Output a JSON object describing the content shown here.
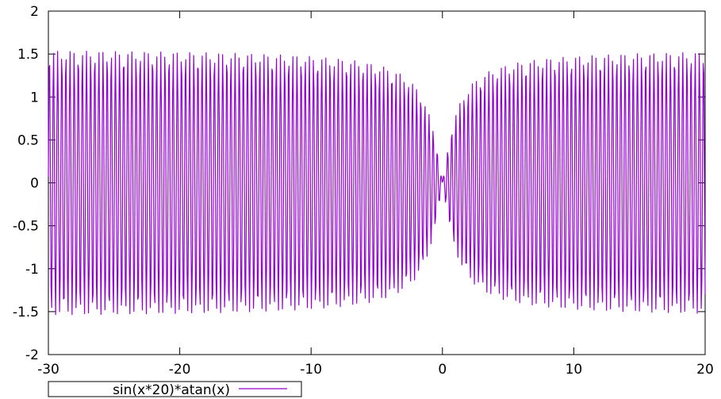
{
  "chart_data": {
    "type": "line",
    "title": "",
    "xlabel": "",
    "ylabel": "",
    "xlim": [
      -30,
      20
    ],
    "ylim": [
      -2,
      2
    ],
    "x_ticks": [
      -30,
      -20,
      -10,
      0,
      10,
      20
    ],
    "y_ticks": [
      -2,
      -1.5,
      -1,
      -0.5,
      0,
      0.5,
      1,
      1.5,
      2
    ],
    "x_tick_labels": [
      "-30",
      "-20",
      "-10",
      "0",
      "10",
      "20"
    ],
    "y_tick_labels": [
      "-2",
      "-1.5",
      "-1",
      "-0.5",
      "0",
      "0.5",
      "1",
      "1.5",
      "2"
    ],
    "grid": false,
    "legend_position": "bottom-left-outside",
    "series": [
      {
        "name": "sin(x*20)*atan(x)",
        "function": "sin(x*20)*atan(x)",
        "color": "#9400d3",
        "samples": 1000
      }
    ]
  }
}
